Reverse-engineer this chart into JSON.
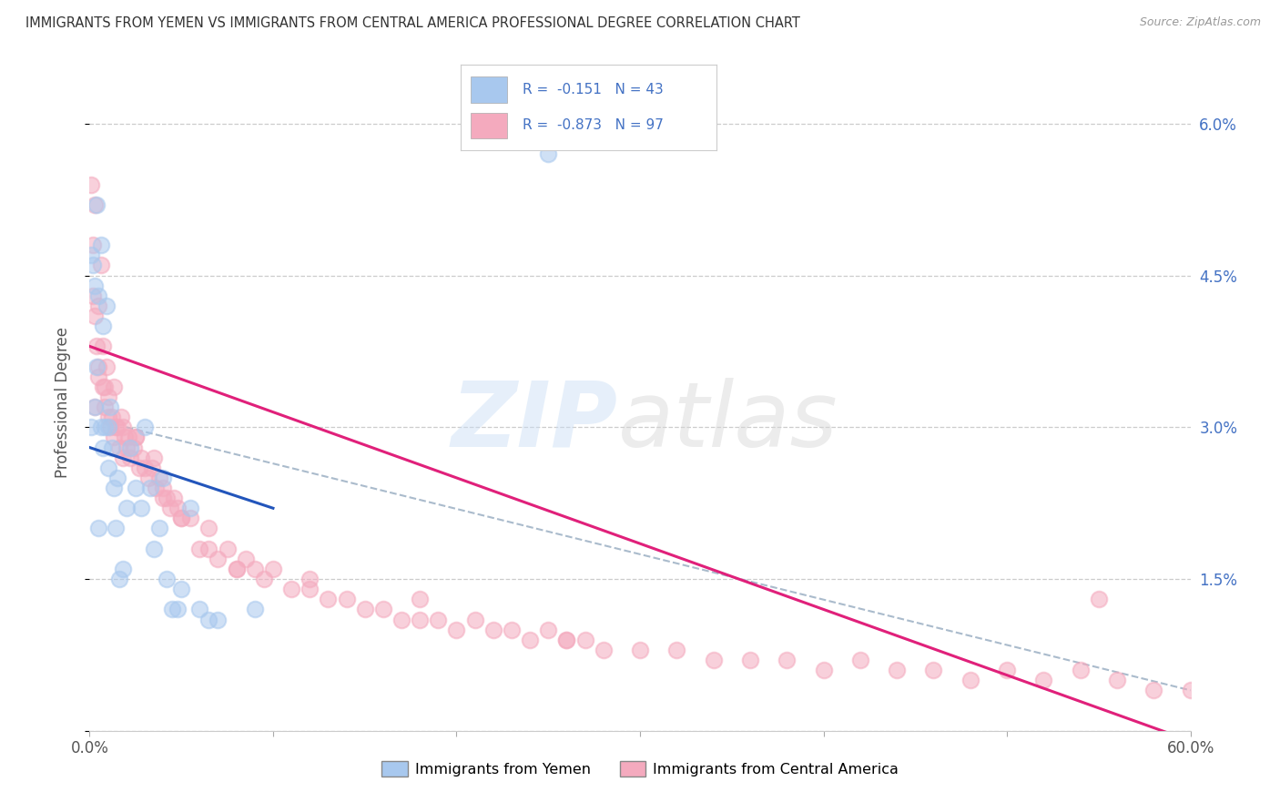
{
  "title": "IMMIGRANTS FROM YEMEN VS IMMIGRANTS FROM CENTRAL AMERICA PROFESSIONAL DEGREE CORRELATION CHART",
  "source": "Source: ZipAtlas.com",
  "ylabel": "Professional Degree",
  "legend_blue_label": "Immigrants from Yemen",
  "legend_pink_label": "Immigrants from Central America",
  "R_blue": -0.151,
  "N_blue": 43,
  "R_pink": -0.873,
  "N_pink": 97,
  "blue_color": "#A8C8EE",
  "pink_color": "#F4AABE",
  "blue_line_color": "#2255BB",
  "pink_line_color": "#E0207A",
  "dashed_line_color": "#AABBCC",
  "background_color": "#FFFFFF",
  "xlim": [
    0.0,
    0.6
  ],
  "ylim": [
    0.0,
    0.065
  ],
  "blue_scatter_x": [
    0.001,
    0.001,
    0.002,
    0.003,
    0.003,
    0.004,
    0.004,
    0.005,
    0.005,
    0.006,
    0.006,
    0.007,
    0.007,
    0.008,
    0.009,
    0.01,
    0.01,
    0.011,
    0.012,
    0.013,
    0.014,
    0.015,
    0.016,
    0.018,
    0.02,
    0.022,
    0.025,
    0.028,
    0.03,
    0.033,
    0.035,
    0.038,
    0.04,
    0.042,
    0.045,
    0.048,
    0.05,
    0.055,
    0.06,
    0.065,
    0.07,
    0.09,
    0.25
  ],
  "blue_scatter_y": [
    0.03,
    0.047,
    0.046,
    0.032,
    0.044,
    0.036,
    0.052,
    0.043,
    0.02,
    0.03,
    0.048,
    0.028,
    0.04,
    0.03,
    0.042,
    0.03,
    0.026,
    0.032,
    0.028,
    0.024,
    0.02,
    0.025,
    0.015,
    0.016,
    0.022,
    0.028,
    0.024,
    0.022,
    0.03,
    0.024,
    0.018,
    0.02,
    0.025,
    0.015,
    0.012,
    0.012,
    0.014,
    0.022,
    0.012,
    0.011,
    0.011,
    0.012,
    0.057
  ],
  "pink_scatter_x": [
    0.001,
    0.002,
    0.002,
    0.003,
    0.003,
    0.004,
    0.005,
    0.005,
    0.006,
    0.007,
    0.007,
    0.008,
    0.009,
    0.01,
    0.011,
    0.012,
    0.013,
    0.014,
    0.015,
    0.016,
    0.017,
    0.018,
    0.019,
    0.02,
    0.021,
    0.022,
    0.024,
    0.025,
    0.027,
    0.028,
    0.03,
    0.032,
    0.034,
    0.036,
    0.038,
    0.04,
    0.042,
    0.044,
    0.046,
    0.048,
    0.05,
    0.055,
    0.06,
    0.065,
    0.07,
    0.075,
    0.08,
    0.085,
    0.09,
    0.095,
    0.1,
    0.11,
    0.12,
    0.13,
    0.14,
    0.15,
    0.16,
    0.17,
    0.18,
    0.19,
    0.2,
    0.21,
    0.22,
    0.23,
    0.24,
    0.25,
    0.26,
    0.27,
    0.28,
    0.3,
    0.32,
    0.34,
    0.36,
    0.38,
    0.4,
    0.42,
    0.44,
    0.46,
    0.48,
    0.5,
    0.52,
    0.54,
    0.56,
    0.58,
    0.6,
    0.003,
    0.005,
    0.008,
    0.01,
    0.013,
    0.018,
    0.025,
    0.035,
    0.04,
    0.05,
    0.065,
    0.08,
    0.12,
    0.18,
    0.26,
    0.55
  ],
  "pink_scatter_y": [
    0.054,
    0.048,
    0.043,
    0.052,
    0.041,
    0.038,
    0.042,
    0.036,
    0.046,
    0.038,
    0.034,
    0.032,
    0.036,
    0.031,
    0.03,
    0.031,
    0.029,
    0.03,
    0.03,
    0.028,
    0.031,
    0.027,
    0.029,
    0.028,
    0.029,
    0.027,
    0.028,
    0.029,
    0.026,
    0.027,
    0.026,
    0.025,
    0.026,
    0.024,
    0.025,
    0.024,
    0.023,
    0.022,
    0.023,
    0.022,
    0.021,
    0.021,
    0.018,
    0.018,
    0.017,
    0.018,
    0.016,
    0.017,
    0.016,
    0.015,
    0.016,
    0.014,
    0.014,
    0.013,
    0.013,
    0.012,
    0.012,
    0.011,
    0.011,
    0.011,
    0.01,
    0.011,
    0.01,
    0.01,
    0.009,
    0.01,
    0.009,
    0.009,
    0.008,
    0.008,
    0.008,
    0.007,
    0.007,
    0.007,
    0.006,
    0.007,
    0.006,
    0.006,
    0.005,
    0.006,
    0.005,
    0.006,
    0.005,
    0.004,
    0.004,
    0.032,
    0.035,
    0.034,
    0.033,
    0.034,
    0.03,
    0.029,
    0.027,
    0.023,
    0.021,
    0.02,
    0.016,
    0.015,
    0.013,
    0.009,
    0.013
  ],
  "blue_line_x": [
    0.0,
    0.1
  ],
  "blue_line_y": [
    0.028,
    0.022
  ],
  "pink_line_x": [
    0.0,
    0.6
  ],
  "pink_line_y": [
    0.038,
    -0.001
  ],
  "dash_line_x": [
    0.02,
    0.6
  ],
  "dash_line_y": [
    0.03,
    0.004
  ]
}
